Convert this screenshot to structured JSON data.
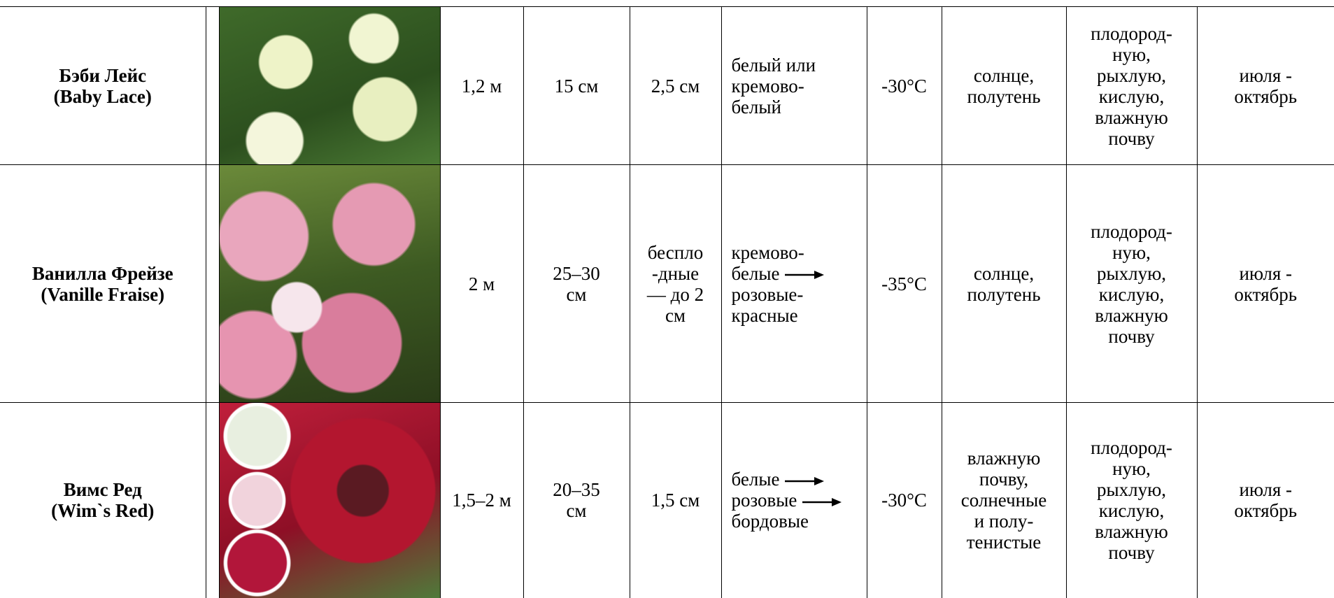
{
  "table": {
    "rows": [
      {
        "name": [
          "Бэби Лейс",
          "(Baby Lace)"
        ],
        "height": [
          "1,2 м"
        ],
        "spacing": [
          "15 см"
        ],
        "flower": [
          "2,5 см"
        ],
        "color": [
          "белый или",
          "кремово-",
          "белый"
        ],
        "frost": [
          "-30°C"
        ],
        "light": [
          "солнце,",
          "полутень"
        ],
        "soil": [
          "плодород-",
          "ную,",
          "рыхлую,",
          "кислую,",
          "влажную",
          "почву"
        ],
        "bloom": [
          "июля -",
          "октябрь"
        ]
      },
      {
        "name": [
          "Ванилла Фрейзе",
          "(Vanille Fraise)"
        ],
        "height": [
          "2 м"
        ],
        "spacing": [
          "25–30",
          "см"
        ],
        "flower": [
          "беспло",
          "-дные",
          "— до 2",
          "см"
        ],
        "color": [
          "кремово-",
          "белые",
          "розовые-",
          "красные"
        ],
        "frost": [
          "-35°C"
        ],
        "light": [
          "солнце,",
          "полутень"
        ],
        "soil": [
          "плодород-",
          "ную,",
          "рыхлую,",
          "кислую,",
          "влажную",
          "почву"
        ],
        "bloom": [
          "июля -",
          "октябрь"
        ]
      },
      {
        "name": [
          "Вимс Ред",
          "(Wim`s Red)"
        ],
        "height": [
          "1,5–2 м"
        ],
        "spacing": [
          "20–35",
          "см"
        ],
        "flower": [
          "1,5 см"
        ],
        "color": [
          "белые",
          "розовые",
          "бордовые"
        ],
        "frost": [
          "-30°C"
        ],
        "light": [
          "влажную",
          "почву,",
          "солнечные",
          "и полу-",
          "тенистые"
        ],
        "soil": [
          "плодород-",
          "ную,",
          "рыхлую,",
          "кислую,",
          "влажную",
          "почву"
        ],
        "bloom": [
          "июля -",
          "октябрь"
        ]
      }
    ]
  }
}
